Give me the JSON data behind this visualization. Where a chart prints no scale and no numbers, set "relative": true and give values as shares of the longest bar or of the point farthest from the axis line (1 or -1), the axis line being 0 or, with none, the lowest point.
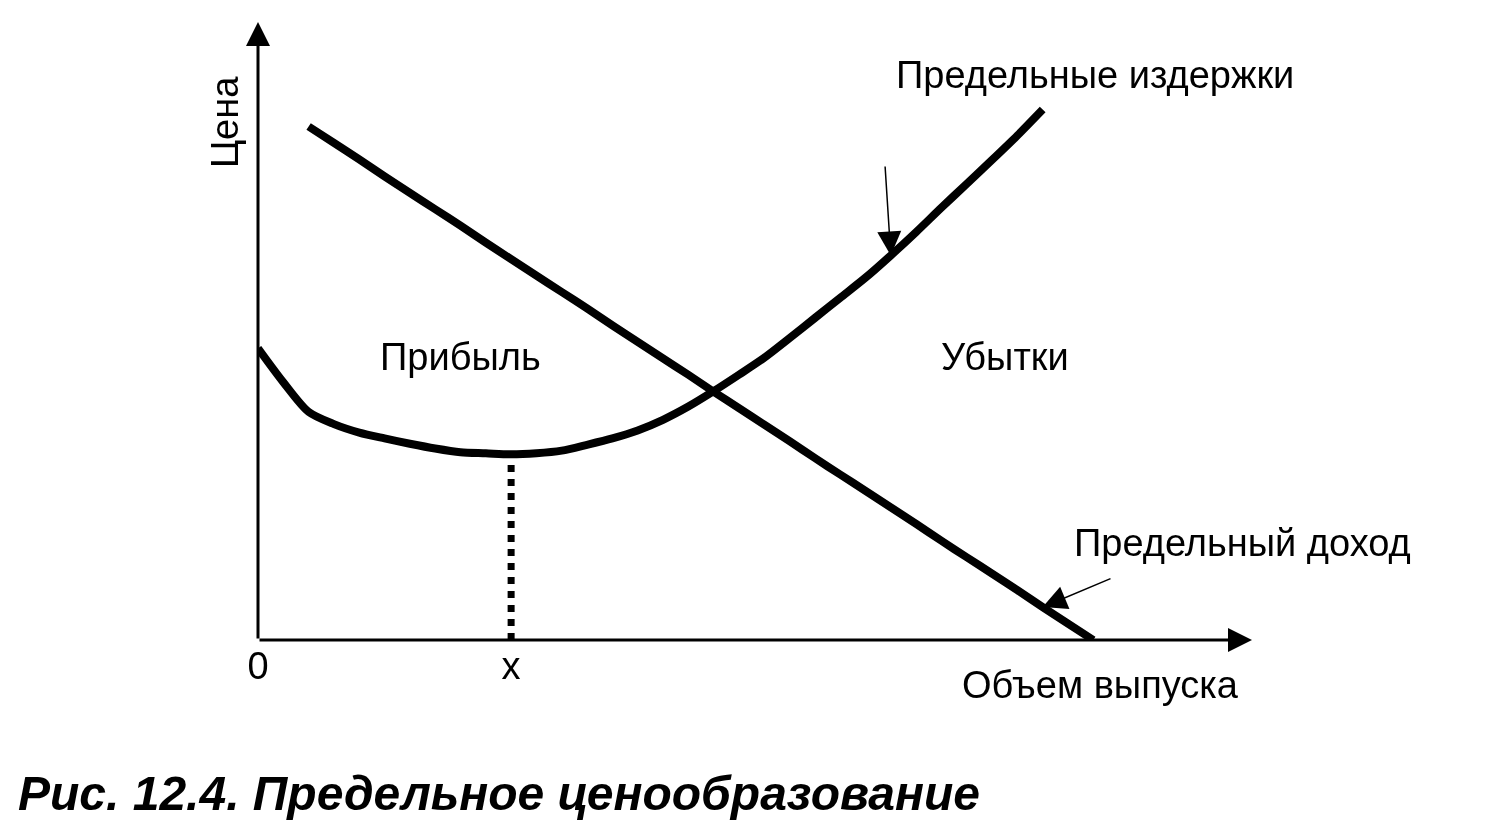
{
  "chart_data": {
    "type": "line",
    "title": "Рис. 12.4. Предельное ценообразование",
    "xlabel": "Объем выпуска",
    "ylabel": "Цена",
    "relative": true,
    "legend": false,
    "tick_labels": "x",
    "categories": [
      "0",
      null,
      null,
      null,
      null,
      null,
      null,
      null,
      null,
      null,
      "x",
      null,
      null,
      null,
      null,
      null,
      null,
      null,
      null,
      null,
      null,
      null,
      null,
      null,
      null,
      null,
      null,
      null,
      null,
      null,
      null,
      null,
      null,
      null
    ],
    "annotations": [
      "Прибыль",
      "Убытки"
    ],
    "series": [
      {
        "name": "Предельные издержки",
        "color": "#000000",
        "values": [
          0.55,
          0.486,
          0.43,
          0.407,
          0.391,
          0.38,
          0.37,
          0.361,
          0.354,
          0.352,
          0.35,
          0.352,
          0.357,
          0.368,
          0.38,
          0.395,
          0.415,
          0.44,
          0.469,
          0.5,
          0.532,
          0.569,
          0.607,
          0.645,
          0.683,
          0.725,
          0.769,
          0.815,
          0.86,
          0.905,
          0.951,
          1.0,
          null,
          null
        ]
      },
      {
        "name": "Предельный доход",
        "color": "#000000",
        "values": [
          null,
          null,
          0.968,
          0.937,
          0.906,
          0.874,
          0.843,
          0.812,
          0.781,
          0.749,
          0.718,
          0.687,
          0.656,
          0.625,
          0.593,
          0.562,
          0.531,
          0.5,
          0.468,
          0.437,
          0.406,
          0.375,
          0.343,
          0.312,
          0.281,
          0.25,
          0.219,
          0.187,
          0.156,
          0.125,
          0.094,
          0.062,
          0.031,
          0
        ]
      },
      {
        "color": "#000000",
        "line_style": "dotted",
        "x": [
          "x",
          "x"
        ],
        "values": [
          0,
          0.35
        ]
      }
    ]
  }
}
